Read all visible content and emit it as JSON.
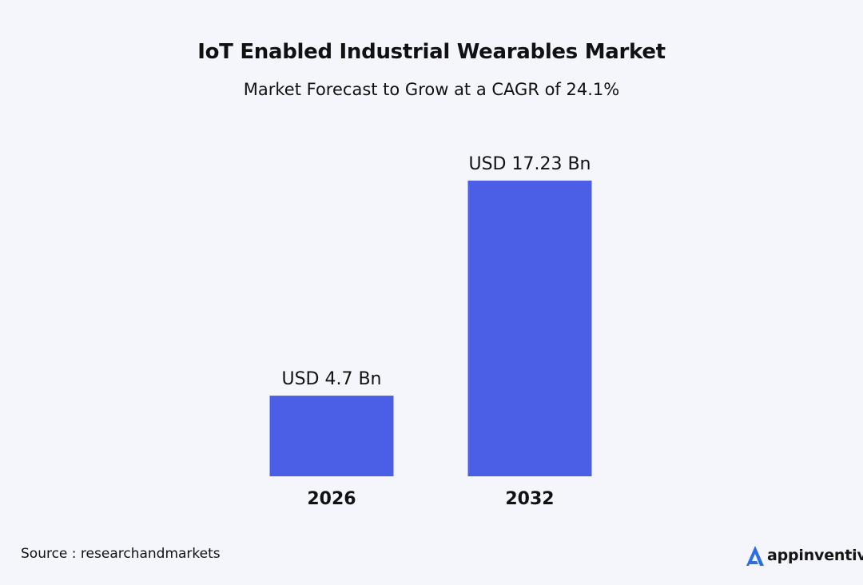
{
  "chart_data": {
    "type": "bar",
    "title": "IoT Enabled Industrial Wearables Market",
    "subtitle": "Market Forecast to Grow at a CAGR of 24.1%",
    "categories": [
      "2026",
      "2032"
    ],
    "values": [
      4.7,
      17.23
    ],
    "data_labels": [
      "USD 4.7 Bn",
      "USD 17.23 Bn"
    ],
    "xlabel": "",
    "ylabel": "",
    "ylim": [
      0,
      17.23
    ],
    "grid": false,
    "bar_color": "#4b5fe6"
  },
  "source": "Source : researchandmarkets",
  "logo": {
    "text": "appinventiv",
    "icon": "appinventiv-a-icon",
    "color": "#2b6fe0"
  },
  "colors": {
    "background": "#f5f6fb",
    "text": "#111111"
  }
}
